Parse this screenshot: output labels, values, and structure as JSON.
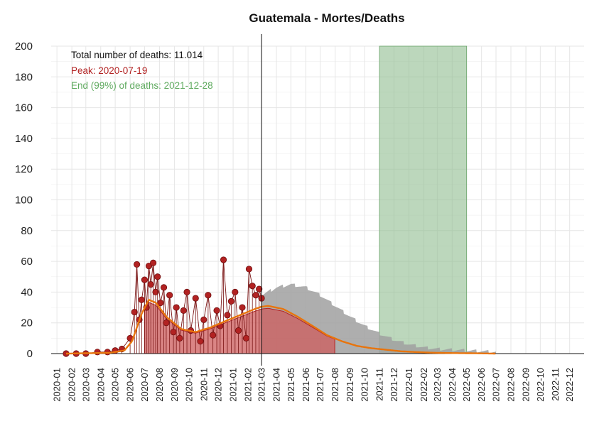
{
  "chart_data": {
    "type": "line",
    "title": "Guatemala - Mortes/Deaths",
    "xlabel": "",
    "ylabel": "",
    "ylim": [
      0,
      200
    ],
    "yticks": [
      0,
      20,
      40,
      60,
      80,
      100,
      120,
      140,
      160,
      180,
      200
    ],
    "xlim": [
      "2019-12-20",
      "2022-12-31"
    ],
    "x_ticks": [
      "2020-01",
      "2020-02",
      "2020-03",
      "2020-04",
      "2020-05",
      "2020-06",
      "2020-07",
      "2020-08",
      "2020-09",
      "2020-10",
      "2020-11",
      "2020-12",
      "2021-01",
      "2021-02",
      "2021-03",
      "2021-04",
      "2021-05",
      "2021-06",
      "2021-07",
      "2021-08",
      "2021-09",
      "2021-10",
      "2021-11",
      "2021-12",
      "2022-01",
      "2022-02",
      "2022-03",
      "2022-04",
      "2022-05",
      "2022-06",
      "2022-07",
      "2022-08",
      "2022-09",
      "2022-10",
      "2022-11",
      "2022-12"
    ],
    "grid": true,
    "current_date_line": "2021-03-01",
    "annotations": {
      "total": "Total number of deaths: 11.014",
      "peak": "Peak: 2020-07-19",
      "end": "End (99%) of deaths: 2021-12-28"
    },
    "colors": {
      "observed": "#b22222",
      "observed_area": "#cd5c5c",
      "fit_line": "#e8740c",
      "prediction_band": "#a0a0a0",
      "end_band": "#8fbc8f",
      "peak_text": "#b22222",
      "end_text": "#5faa5f",
      "total_text": "#111111"
    },
    "end_band": {
      "x_start": "2021-11-01",
      "x_end": "2022-05-01",
      "y_top": 200
    },
    "peak_band": {
      "x_start": "2020-07-01",
      "x_end": "2021-07-31"
    },
    "fitted_curve": {
      "x": [
        "2020-01-20",
        "2020-04-20",
        "2020-05-20",
        "2020-06-05",
        "2020-06-25",
        "2020-07-10",
        "2020-07-25",
        "2020-08-15",
        "2020-09-15",
        "2020-10-15",
        "2020-11-15",
        "2020-12-15",
        "2021-01-15",
        "2021-02-15",
        "2021-03-01",
        "2021-03-15",
        "2021-04-15",
        "2021-05-15",
        "2021-06-15",
        "2021-07-15",
        "2021-08-15",
        "2021-09-15",
        "2021-10-15",
        "2021-11-15",
        "2021-12-15",
        "2022-01-15",
        "2022-02-15",
        "2022-03-15",
        "2022-04-15",
        "2022-05-15",
        "2022-07-01"
      ],
      "y": [
        0,
        0.5,
        2,
        8,
        26,
        35,
        33,
        24,
        16,
        14,
        17,
        21,
        25,
        29,
        30.5,
        31,
        29,
        24,
        18,
        12,
        8,
        5,
        3.5,
        2.5,
        1.5,
        1,
        0.6,
        0.4,
        0.3,
        0.2,
        0
      ]
    },
    "prediction_band": {
      "x": [
        "2021-03-01",
        "2021-04-01",
        "2021-05-01",
        "2021-06-01",
        "2021-07-01",
        "2021-08-01",
        "2021-09-01",
        "2021-10-01",
        "2021-11-01",
        "2021-12-01",
        "2022-01-01",
        "2022-02-01",
        "2022-03-01",
        "2022-04-01",
        "2022-05-01",
        "2022-06-01",
        "2022-07-01"
      ],
      "upper": [
        38,
        43,
        45,
        43,
        38,
        31,
        24,
        18,
        13,
        9,
        6,
        4,
        3,
        2.5,
        2,
        1.5,
        1
      ],
      "lower": [
        21,
        19,
        16,
        12,
        8,
        5,
        3,
        2,
        1,
        0.5,
        0.3,
        0.2,
        0.1,
        0,
        0,
        0,
        0
      ]
    },
    "observed_deaths": [
      {
        "x": "2020-01-20",
        "y": 0
      },
      {
        "x": "2020-02-10",
        "y": 0
      },
      {
        "x": "2020-03-01",
        "y": 0
      },
      {
        "x": "2020-03-25",
        "y": 1
      },
      {
        "x": "2020-04-15",
        "y": 1
      },
      {
        "x": "2020-05-01",
        "y": 2
      },
      {
        "x": "2020-05-15",
        "y": 3
      },
      {
        "x": "2020-06-01",
        "y": 10
      },
      {
        "x": "2020-06-10",
        "y": 27
      },
      {
        "x": "2020-06-15",
        "y": 58
      },
      {
        "x": "2020-06-20",
        "y": 22
      },
      {
        "x": "2020-06-25",
        "y": 35
      },
      {
        "x": "2020-07-01",
        "y": 48
      },
      {
        "x": "2020-07-05",
        "y": 30
      },
      {
        "x": "2020-07-10",
        "y": 57
      },
      {
        "x": "2020-07-14",
        "y": 45
      },
      {
        "x": "2020-07-19",
        "y": 59
      },
      {
        "x": "2020-07-24",
        "y": 40
      },
      {
        "x": "2020-07-28",
        "y": 50
      },
      {
        "x": "2020-08-03",
        "y": 33
      },
      {
        "x": "2020-08-10",
        "y": 43
      },
      {
        "x": "2020-08-15",
        "y": 20
      },
      {
        "x": "2020-08-22",
        "y": 38
      },
      {
        "x": "2020-08-30",
        "y": 14
      },
      {
        "x": "2020-09-05",
        "y": 30
      },
      {
        "x": "2020-09-12",
        "y": 10
      },
      {
        "x": "2020-09-20",
        "y": 28
      },
      {
        "x": "2020-09-27",
        "y": 40
      },
      {
        "x": "2020-10-05",
        "y": 15
      },
      {
        "x": "2020-10-15",
        "y": 36
      },
      {
        "x": "2020-10-25",
        "y": 8
      },
      {
        "x": "2020-11-01",
        "y": 22
      },
      {
        "x": "2020-11-10",
        "y": 38
      },
      {
        "x": "2020-11-20",
        "y": 12
      },
      {
        "x": "2020-11-28",
        "y": 28
      },
      {
        "x": "2020-12-05",
        "y": 18
      },
      {
        "x": "2020-12-12",
        "y": 61
      },
      {
        "x": "2020-12-20",
        "y": 25
      },
      {
        "x": "2020-12-28",
        "y": 34
      },
      {
        "x": "2021-01-05",
        "y": 40
      },
      {
        "x": "2021-01-12",
        "y": 15
      },
      {
        "x": "2021-01-20",
        "y": 30
      },
      {
        "x": "2021-01-28",
        "y": 10
      },
      {
        "x": "2021-02-03",
        "y": 55
      },
      {
        "x": "2021-02-10",
        "y": 44
      },
      {
        "x": "2021-02-17",
        "y": 38
      },
      {
        "x": "2021-02-24",
        "y": 42
      },
      {
        "x": "2021-03-01",
        "y": 36
      }
    ]
  }
}
